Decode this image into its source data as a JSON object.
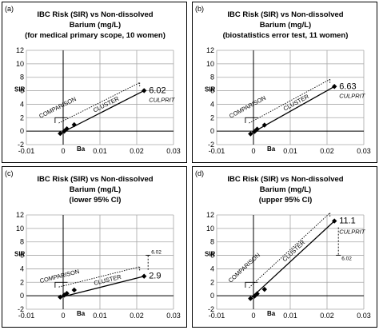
{
  "chart_data": [
    {
      "type": "scatter",
      "panel_label": "(a)",
      "title_lines": [
        "IBC Risk (SIR) vs Non-dissolved",
        "Barium (mg/L)",
        "(for medical primary scope, 10 women)"
      ],
      "xlabel": "Ba",
      "ylabel": "SIR",
      "xlim": [
        -0.01,
        0.03
      ],
      "ylim": [
        -2,
        12
      ],
      "x_ticks": [
        "-0.01",
        "0",
        "0.01",
        "0.02",
        "0.03"
      ],
      "y_ticks": [
        "-2",
        "0",
        "2",
        "4",
        "6",
        "8",
        "10",
        "12"
      ],
      "grid": true,
      "points": [
        {
          "x": -0.0008,
          "y": -0.35
        },
        {
          "x": 0.0003,
          "y": 0.0
        },
        {
          "x": 0.001,
          "y": 0.35
        },
        {
          "x": 0.003,
          "y": 0.95
        },
        {
          "x": 0.022,
          "y": 6.02
        }
      ],
      "fit_line": [
        [
          -0.0012,
          -0.45
        ],
        [
          0.022,
          6.02
        ]
      ],
      "cluster_line": [
        [
          -0.0012,
          1.2
        ],
        [
          0.0208,
          7.2
        ]
      ],
      "value_label": "6.02",
      "culprit_label": "CULPRIT",
      "comparison_label": "COMPARISON",
      "cluster_label": "CLUSTER"
    },
    {
      "type": "scatter",
      "panel_label": "(b)",
      "title_lines": [
        "IBC Risk (SIR) vs Non-dissolved",
        "Barium (mg/L)",
        "(biostatistics error test, 11 women)"
      ],
      "xlabel": "Ba",
      "ylabel": "SIR",
      "xlim": [
        -0.01,
        0.03
      ],
      "ylim": [
        -2,
        12
      ],
      "x_ticks": [
        "-0.01",
        "0",
        "0.01",
        "0.02",
        "0.03"
      ],
      "y_ticks": [
        "-2",
        "0",
        "2",
        "4",
        "6",
        "8",
        "10",
        "12"
      ],
      "grid": true,
      "points": [
        {
          "x": -0.0008,
          "y": -0.4
        },
        {
          "x": 0.0003,
          "y": -0.05
        },
        {
          "x": 0.001,
          "y": 0.3
        },
        {
          "x": 0.003,
          "y": 0.9
        },
        {
          "x": 0.022,
          "y": 6.63
        }
      ],
      "fit_line": [
        [
          -0.0012,
          -0.5
        ],
        [
          0.022,
          6.63
        ]
      ],
      "cluster_line": [
        [
          -0.0012,
          1.2
        ],
        [
          0.0208,
          7.7
        ]
      ],
      "value_label": "6.63",
      "culprit_label": "CULPRIT",
      "comparison_label": "COMPARISON",
      "cluster_label": "CLUSTER"
    },
    {
      "type": "scatter",
      "panel_label": "(c)",
      "title_lines": [
        "IBC Risk (SIR) vs Non-dissolved",
        "Barium (mg/L)",
        "(lower 95% CI)"
      ],
      "xlabel": "Ba",
      "ylabel": "SIR",
      "xlim": [
        -0.01,
        0.03
      ],
      "ylim": [
        -2,
        12
      ],
      "x_ticks": [
        "-0.01",
        "0",
        "0.01",
        "0.02",
        "0.03"
      ],
      "y_ticks": [
        "-2",
        "0",
        "2",
        "4",
        "6",
        "8",
        "10",
        "12"
      ],
      "grid": true,
      "points": [
        {
          "x": -0.0008,
          "y": -0.2
        },
        {
          "x": 0.0003,
          "y": 0.1
        },
        {
          "x": 0.001,
          "y": 0.35
        },
        {
          "x": 0.003,
          "y": 0.85
        },
        {
          "x": 0.022,
          "y": 2.9
        }
      ],
      "fit_line": [
        [
          -0.0012,
          -0.3
        ],
        [
          0.022,
          2.9
        ]
      ],
      "cluster_line": [
        [
          -0.0012,
          1.3
        ],
        [
          0.0208,
          4.3
        ]
      ],
      "value_label": "2.9",
      "reference_value": 6.02,
      "reference_label": "6.02",
      "comparison_label": "COMPARISON",
      "cluster_label": "CLUSTER"
    },
    {
      "type": "scatter",
      "panel_label": "(d)",
      "title_lines": [
        "IBC Risk (SIR) vs Non-dissolved",
        "Barium (mg/L)",
        "(upper 95% CI)"
      ],
      "xlabel": "Ba",
      "ylabel": "SIR",
      "xlim": [
        -0.01,
        0.03
      ],
      "ylim": [
        -2,
        12
      ],
      "x_ticks": [
        "-0.01",
        "0",
        "0.01",
        "0.02",
        "0.03"
      ],
      "y_ticks": [
        "-2",
        "0",
        "2",
        "4",
        "6",
        "8",
        "10",
        "12"
      ],
      "grid": true,
      "points": [
        {
          "x": -0.0008,
          "y": -0.4
        },
        {
          "x": 0.0003,
          "y": -0.05
        },
        {
          "x": 0.001,
          "y": 0.3
        },
        {
          "x": 0.003,
          "y": 0.95
        },
        {
          "x": 0.022,
          "y": 11.1
        }
      ],
      "fit_line": [
        [
          -0.0012,
          -0.6
        ],
        [
          0.022,
          11.1
        ]
      ],
      "cluster_line": [
        [
          -0.0012,
          1.2
        ],
        [
          0.0208,
          12.3
        ]
      ],
      "value_label": "11.1",
      "culprit_label": "CULPRIT",
      "reference_value": 6.02,
      "reference_label": "6.02",
      "comparison_label": "COMPARISON",
      "cluster_label": "CLUSTER"
    }
  ]
}
